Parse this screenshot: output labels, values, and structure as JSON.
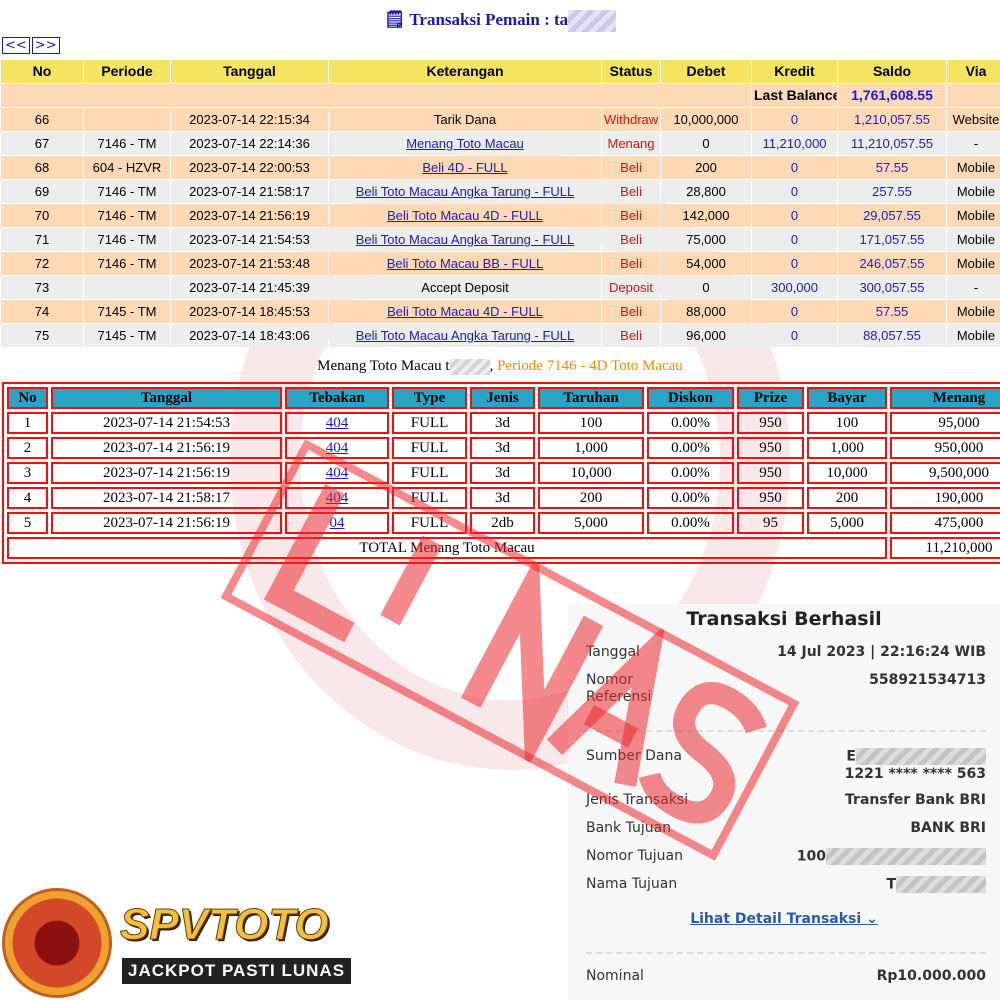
{
  "header": {
    "title": "Transaksi  Pemain : ta",
    "nav_prev": "<<",
    "nav_next": ">>"
  },
  "table1": {
    "columns": [
      "No",
      "Periode",
      "Tanggal",
      "Keterangan",
      "Status",
      "Debet",
      "Kredit",
      "Saldo",
      "Via"
    ],
    "last_balance_label": "Last Balance",
    "last_balance": "1,761,608.55",
    "rows": [
      {
        "no": "66",
        "periode": "",
        "tanggal": "2023-07-14 22:15:34",
        "ket": "Tarik Dana",
        "link": false,
        "status": "Withdraw",
        "debet": "10,000,000",
        "kredit": "0",
        "saldo": "1,210,057.55",
        "via": "Website"
      },
      {
        "no": "67",
        "periode": "7146 - TM",
        "tanggal": "2023-07-14 22:14:36",
        "ket": "Menang Toto Macau",
        "link": true,
        "status": "Menang",
        "debet": "0",
        "kredit": "11,210,000",
        "saldo": "11,210,057.55",
        "via": "-"
      },
      {
        "no": "68",
        "periode": "604 - HZVR",
        "tanggal": "2023-07-14 22:00:53",
        "ket": "Beli 4D - FULL",
        "link": true,
        "status": "Beli",
        "debet": "200",
        "kredit": "0",
        "saldo": "57.55",
        "via": "Mobile"
      },
      {
        "no": "69",
        "periode": "7146 - TM",
        "tanggal": "2023-07-14 21:58:17",
        "ket": "Beli Toto Macau Angka Tarung - FULL",
        "link": true,
        "status": "Beli",
        "debet": "28,800",
        "kredit": "0",
        "saldo": "257.55",
        "via": "Mobile"
      },
      {
        "no": "70",
        "periode": "7146 - TM",
        "tanggal": "2023-07-14 21:56:19",
        "ket": "Beli Toto Macau 4D - FULL",
        "link": true,
        "status": "Beli",
        "debet": "142,000",
        "kredit": "0",
        "saldo": "29,057.55",
        "via": "Mobile"
      },
      {
        "no": "71",
        "periode": "7146 - TM",
        "tanggal": "2023-07-14 21:54:53",
        "ket": "Beli Toto Macau Angka Tarung - FULL",
        "link": true,
        "status": "Beli",
        "debet": "75,000",
        "kredit": "0",
        "saldo": "171,057.55",
        "via": "Mobile"
      },
      {
        "no": "72",
        "periode": "7146 - TM",
        "tanggal": "2023-07-14 21:53:48",
        "ket": "Beli Toto Macau BB - FULL",
        "link": true,
        "status": "Beli",
        "debet": "54,000",
        "kredit": "0",
        "saldo": "246,057.55",
        "via": "Mobile"
      },
      {
        "no": "73",
        "periode": "",
        "tanggal": "2023-07-14 21:45:39",
        "ket": "Accept Deposit",
        "link": false,
        "status": "Deposit",
        "debet": "0",
        "kredit": "300,000",
        "saldo": "300,057.55",
        "via": "-"
      },
      {
        "no": "74",
        "periode": "7145 - TM",
        "tanggal": "2023-07-14 18:45:53",
        "ket": "Beli Toto Macau 4D - FULL",
        "link": true,
        "status": "Beli",
        "debet": "88,000",
        "kredit": "0",
        "saldo": "57.55",
        "via": "Mobile"
      },
      {
        "no": "75",
        "periode": "7145 - TM",
        "tanggal": "2023-07-14 18:43:06",
        "ket": "Beli Toto Macau Angka Tarung - FULL",
        "link": true,
        "status": "Beli",
        "debet": "96,000",
        "kredit": "0",
        "saldo": "88,057.55",
        "via": "Mobile"
      }
    ]
  },
  "caption": {
    "prefix": "Menang Toto Macau t",
    "suffix": ", ",
    "period": "Periode 7146 - 4D Toto Macau"
  },
  "table2": {
    "columns": [
      "No",
      "Tanggal",
      "Tebakan",
      "Type",
      "Jenis",
      "Taruhan",
      "Diskon",
      "Prize",
      "Bayar",
      "Menang"
    ],
    "rows": [
      [
        "1",
        "2023-07-14 21:54:53",
        "404",
        "FULL",
        "3d",
        "100",
        "0.00%",
        "950",
        "100",
        "95,000"
      ],
      [
        "2",
        "2023-07-14 21:56:19",
        "404",
        "FULL",
        "3d",
        "1,000",
        "0.00%",
        "950",
        "1,000",
        "950,000"
      ],
      [
        "3",
        "2023-07-14 21:56:19",
        "404",
        "FULL",
        "3d",
        "10,000",
        "0.00%",
        "950",
        "10,000",
        "9,500,000"
      ],
      [
        "4",
        "2023-07-14 21:58:17",
        "404",
        "FULL",
        "3d",
        "200",
        "0.00%",
        "950",
        "200",
        "190,000"
      ],
      [
        "5",
        "2023-07-14 21:56:19",
        "04",
        "FULL",
        "2db",
        "5,000",
        "0.00%",
        "95",
        "5,000",
        "475,000"
      ]
    ],
    "total_label": "TOTAL  Menang Toto Macau",
    "total": "11,210,000"
  },
  "receipt": {
    "title": "Transaksi Berhasil",
    "tanggal_label": "Tanggal",
    "tanggal": "14 Jul 2023 | 22:16:24 WIB",
    "ref_label": "Nomor Referensi",
    "ref": "558921534713",
    "sumber_label": "Sumber Dana",
    "sumber_name": "E",
    "sumber_acct": "1221 **** **** 563",
    "jenis_label": "Jenis Transaksi",
    "jenis": "Transfer Bank BRI",
    "bank_label": "Bank Tujuan",
    "bank": "BANK BRI",
    "nomor_label": "Nomor Tujuan",
    "nomor": "100",
    "nama_label": "Nama Tujuan",
    "nama": "T",
    "detail_link": "Lihat Detail Transaksi",
    "nominal_label": "Nominal",
    "nominal": "Rp10.000.000"
  },
  "stamp": "LUNAS",
  "logo": {
    "brand": "SPVTOTO",
    "tagline": "JACKPOT PASTI LUNAS"
  },
  "colors": {
    "header_yellow": "#f4e461",
    "row_peach": "#fdd9b5",
    "row_gray": "#ededed",
    "table2_header": "#2aa4c4",
    "border_red": "#f01010"
  }
}
